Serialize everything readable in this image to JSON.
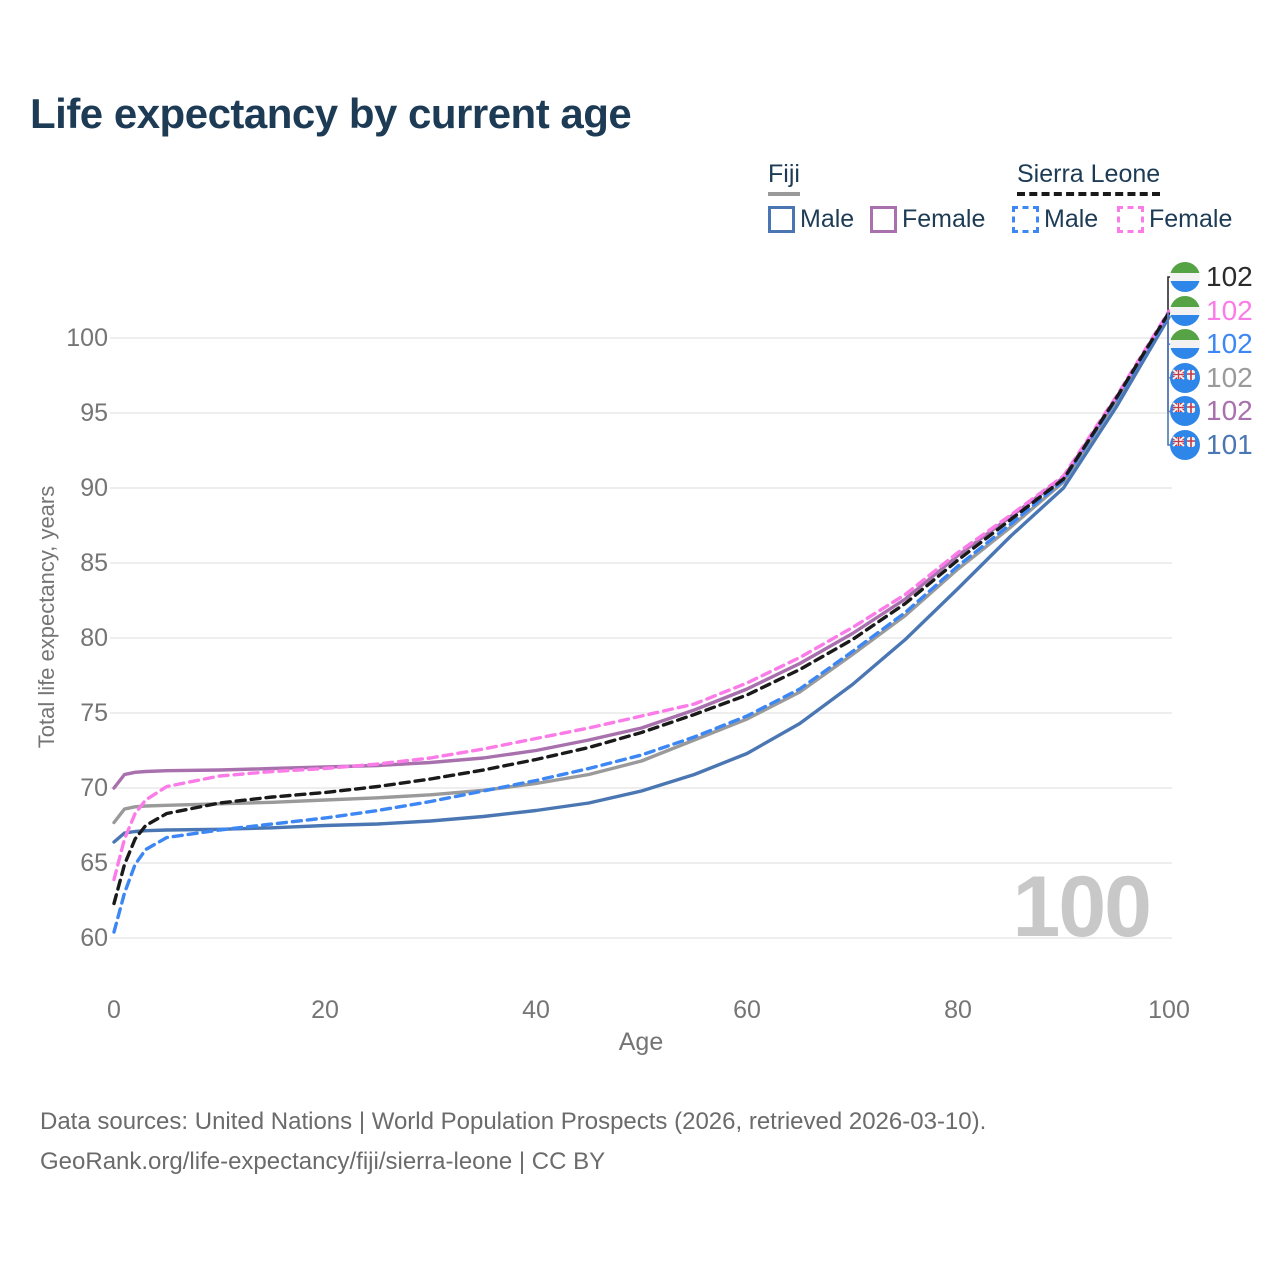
{
  "title": "Life expectancy by current age",
  "legend": {
    "groups": [
      {
        "label": "Fiji",
        "underline_color": "#9a9a9a",
        "line_style": "solid",
        "items": [
          {
            "label": "Male",
            "color": "#4a77b4"
          },
          {
            "label": "Female",
            "color": "#a871ad"
          }
        ]
      },
      {
        "label": "Sierra Leone",
        "underline_color": "#1a1a1a",
        "line_style": "dashed",
        "items": [
          {
            "label": "Male",
            "color": "#3d87f5"
          },
          {
            "label": "Female",
            "color": "#fb7ce8"
          }
        ]
      }
    ]
  },
  "chart_data": {
    "type": "line",
    "title": "Life expectancy by current age",
    "xlabel": "Age",
    "ylabel": "Total life expectancy, years",
    "xlim": [
      0,
      100
    ],
    "ylim": [
      60,
      102
    ],
    "xticks": [
      0,
      20,
      40,
      60,
      80,
      100
    ],
    "yticks": [
      60,
      65,
      70,
      75,
      80,
      85,
      90,
      95,
      100
    ],
    "ytick_labels_topdown": [
      "100",
      "95",
      "90",
      "85",
      "80",
      "75",
      "70",
      "65",
      "60"
    ],
    "xtick_labels": [
      "0",
      "20",
      "40",
      "60",
      "80",
      "100"
    ],
    "grid": "horizontal-only",
    "gridline_color": "#e9e9e9",
    "watermark": "100",
    "x": [
      0,
      1,
      2,
      3,
      5,
      10,
      15,
      20,
      25,
      30,
      35,
      40,
      45,
      50,
      55,
      60,
      65,
      70,
      75,
      80,
      85,
      90,
      95,
      100
    ],
    "series": [
      {
        "name": "Fiji Total",
        "country": "Fiji",
        "sex": "Total",
        "color": "#9a9a9a",
        "dashed": false,
        "values": [
          67.7,
          68.6,
          68.75,
          68.8,
          68.85,
          68.95,
          69.05,
          69.2,
          69.35,
          69.55,
          69.85,
          70.3,
          70.9,
          71.8,
          73.2,
          74.6,
          76.4,
          78.9,
          81.5,
          84.6,
          87.4,
          90.4,
          95.8,
          101.7
        ]
      },
      {
        "name": "Fiji Male",
        "country": "Fiji",
        "sex": "Male",
        "color": "#4a77b4",
        "dashed": false,
        "values": [
          66.4,
          67.0,
          67.1,
          67.15,
          67.2,
          67.25,
          67.35,
          67.5,
          67.6,
          67.8,
          68.1,
          68.5,
          69.0,
          69.8,
          70.9,
          72.3,
          74.3,
          76.9,
          79.9,
          83.3,
          86.8,
          90.0,
          95.4,
          101.4
        ]
      },
      {
        "name": "Fiji Female",
        "country": "Fiji",
        "sex": "Female",
        "color": "#a871ad",
        "dashed": false,
        "values": [
          70.0,
          70.9,
          71.05,
          71.1,
          71.15,
          71.2,
          71.3,
          71.4,
          71.5,
          71.7,
          72.0,
          72.5,
          73.2,
          74.0,
          75.2,
          76.6,
          78.3,
          80.3,
          82.6,
          85.5,
          88.1,
          90.7,
          96.0,
          101.7
        ]
      },
      {
        "name": "Sierra Leone Male",
        "country": "Sierra Leone",
        "sex": "Male",
        "color": "#3d87f5",
        "dashed": true,
        "values": [
          60.4,
          63.0,
          64.9,
          65.9,
          66.7,
          67.2,
          67.6,
          68.0,
          68.5,
          69.1,
          69.8,
          70.5,
          71.3,
          72.2,
          73.4,
          74.8,
          76.6,
          79.1,
          81.7,
          84.8,
          87.6,
          90.5,
          95.9,
          101.6
        ]
      },
      {
        "name": "Sierra Leone Female",
        "country": "Sierra Leone",
        "sex": "Female",
        "color": "#fb7ce8",
        "dashed": true,
        "values": [
          63.9,
          66.6,
          68.3,
          69.2,
          70.1,
          70.8,
          71.1,
          71.3,
          71.6,
          72.0,
          72.6,
          73.3,
          74.0,
          74.8,
          75.6,
          77.0,
          78.7,
          80.7,
          82.9,
          85.7,
          88.2,
          90.8,
          96.1,
          101.8
        ]
      },
      {
        "name": "Sierra Leone Total",
        "country": "Sierra Leone",
        "sex": "Total",
        "color": "#1a1a1a",
        "dashed": true,
        "values": [
          62.3,
          64.9,
          66.6,
          67.5,
          68.3,
          69.0,
          69.4,
          69.7,
          70.1,
          70.6,
          71.2,
          71.9,
          72.7,
          73.7,
          74.9,
          76.2,
          77.9,
          79.9,
          82.3,
          85.2,
          87.9,
          90.6,
          96.0,
          101.7
        ]
      }
    ],
    "end_labels": [
      {
        "value": "102",
        "color": "#2b2b2b",
        "flag": "sierra-leone",
        "series": "Sierra Leone Total"
      },
      {
        "value": "102",
        "color": "#fb7ce8",
        "flag": "sierra-leone",
        "series": "Sierra Leone Female"
      },
      {
        "value": "102",
        "color": "#3d87f5",
        "flag": "sierra-leone",
        "series": "Sierra Leone Male"
      },
      {
        "value": "102",
        "color": "#9a9a9a",
        "flag": "fiji",
        "series": "Fiji Total"
      },
      {
        "value": "102",
        "color": "#a871ad",
        "flag": "fiji",
        "series": "Fiji Female"
      },
      {
        "value": "101",
        "color": "#4a77b4",
        "flag": "fiji",
        "series": "Fiji Male"
      }
    ],
    "flag_colors": {
      "sierra_leone_green": "#55a345",
      "sierra_leone_white": "#f2f2f2",
      "sierra_leone_blue": "#2e86e8",
      "fiji_blue": "#2e86e8",
      "fiji_red": "#c23a4b",
      "fiji_white": "#f2f2f2"
    }
  },
  "footer": {
    "line1": "Data sources: United Nations | World Population Prospects (2026, retrieved 2026-03-10).",
    "line2": "GeoRank.org/life-expectancy/fiji/sierra-leone | CC BY"
  }
}
